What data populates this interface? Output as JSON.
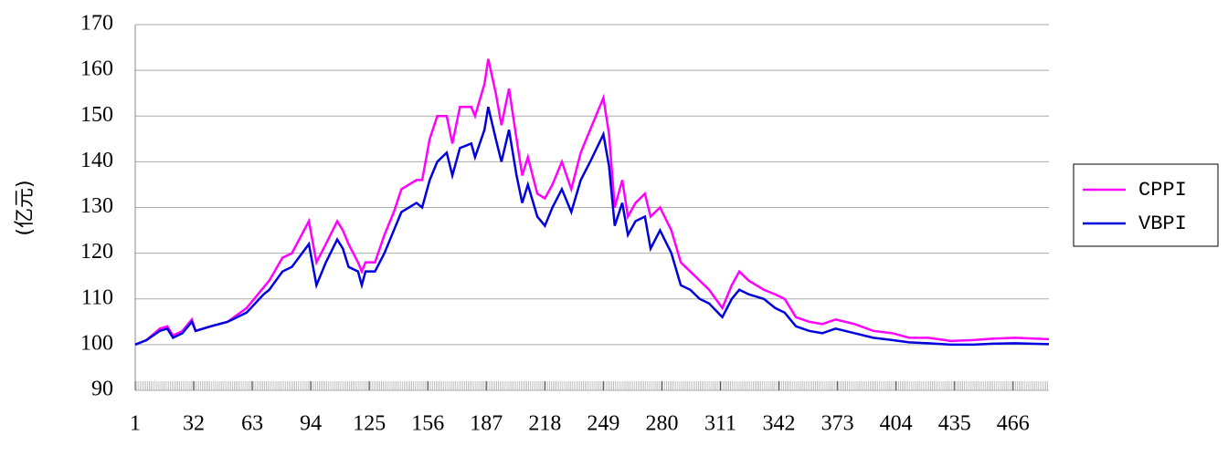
{
  "chart_data": {
    "type": "line",
    "y_label": "(亿元)",
    "x": [
      1,
      7,
      14,
      18,
      21,
      26,
      31,
      33,
      41,
      50,
      60,
      69,
      72,
      79,
      84,
      93,
      97,
      102,
      108,
      111,
      114,
      119,
      121,
      123,
      128,
      133,
      138,
      142,
      150,
      153,
      157,
      161,
      166,
      169,
      173,
      179,
      181,
      186,
      188,
      192,
      195,
      199,
      203,
      206,
      209,
      214,
      218,
      222,
      227,
      232,
      237,
      242,
      249,
      252,
      255,
      259,
      262,
      266,
      271,
      274,
      279,
      285,
      290,
      295,
      300,
      305,
      312,
      317,
      321,
      326,
      334,
      340,
      345,
      351,
      358,
      365,
      372,
      382,
      392,
      402,
      411,
      421,
      433,
      445,
      455,
      467,
      485
    ],
    "series": [
      {
        "name": "CPPI",
        "color": "#ff00ff",
        "values": [
          100,
          101,
          103.5,
          104,
          102,
          103,
          105.5,
          103,
          104,
          105,
          108,
          112.5,
          114,
          119,
          120,
          127,
          118,
          122,
          127,
          125,
          122,
          118,
          116,
          118,
          118,
          124,
          129,
          134,
          136,
          136,
          145,
          150,
          150,
          144,
          152,
          152,
          150,
          157,
          162.5,
          155,
          148,
          156,
          145,
          137,
          141,
          133,
          132,
          135,
          140,
          134,
          142,
          147,
          154,
          146,
          130,
          136,
          128,
          131,
          133,
          128,
          130,
          125,
          118,
          116,
          114,
          112,
          108,
          113,
          116,
          114,
          112,
          111,
          110,
          106,
          105,
          104.5,
          105.5,
          104.5,
          103,
          102.5,
          101.5,
          101.5,
          100.8,
          101,
          101.3,
          101.5,
          101.2
        ]
      },
      {
        "name": "VBPI",
        "color": "#0000dd",
        "values": [
          100,
          101,
          103,
          103.5,
          101.5,
          102.5,
          105,
          103,
          104,
          105,
          107,
          111,
          112,
          116,
          117,
          122,
          113,
          118,
          123,
          121,
          117,
          116,
          113,
          116,
          116,
          120,
          125,
          129,
          131,
          130,
          136,
          140,
          142,
          137,
          143,
          144,
          141,
          147,
          152,
          145,
          140,
          147,
          137,
          131,
          135,
          128,
          126,
          130,
          134,
          129,
          136,
          140,
          146,
          139,
          126,
          131,
          124,
          127,
          128,
          121,
          125,
          120,
          113,
          112,
          110,
          109,
          106,
          110,
          112,
          111,
          110,
          108,
          107,
          104,
          103,
          102.5,
          103.5,
          102.5,
          101.5,
          101,
          100.5,
          100.3,
          100,
          100,
          100.2,
          100.3,
          100.1
        ]
      }
    ],
    "xlim": [
      1,
      485
    ],
    "xticks": [
      1,
      32,
      63,
      94,
      125,
      156,
      187,
      218,
      249,
      280,
      311,
      342,
      373,
      404,
      435,
      466
    ],
    "ylim": [
      90,
      170
    ],
    "yticks": [
      90,
      100,
      110,
      120,
      130,
      140,
      150,
      160,
      170
    ],
    "grid": true,
    "legend": "right"
  }
}
